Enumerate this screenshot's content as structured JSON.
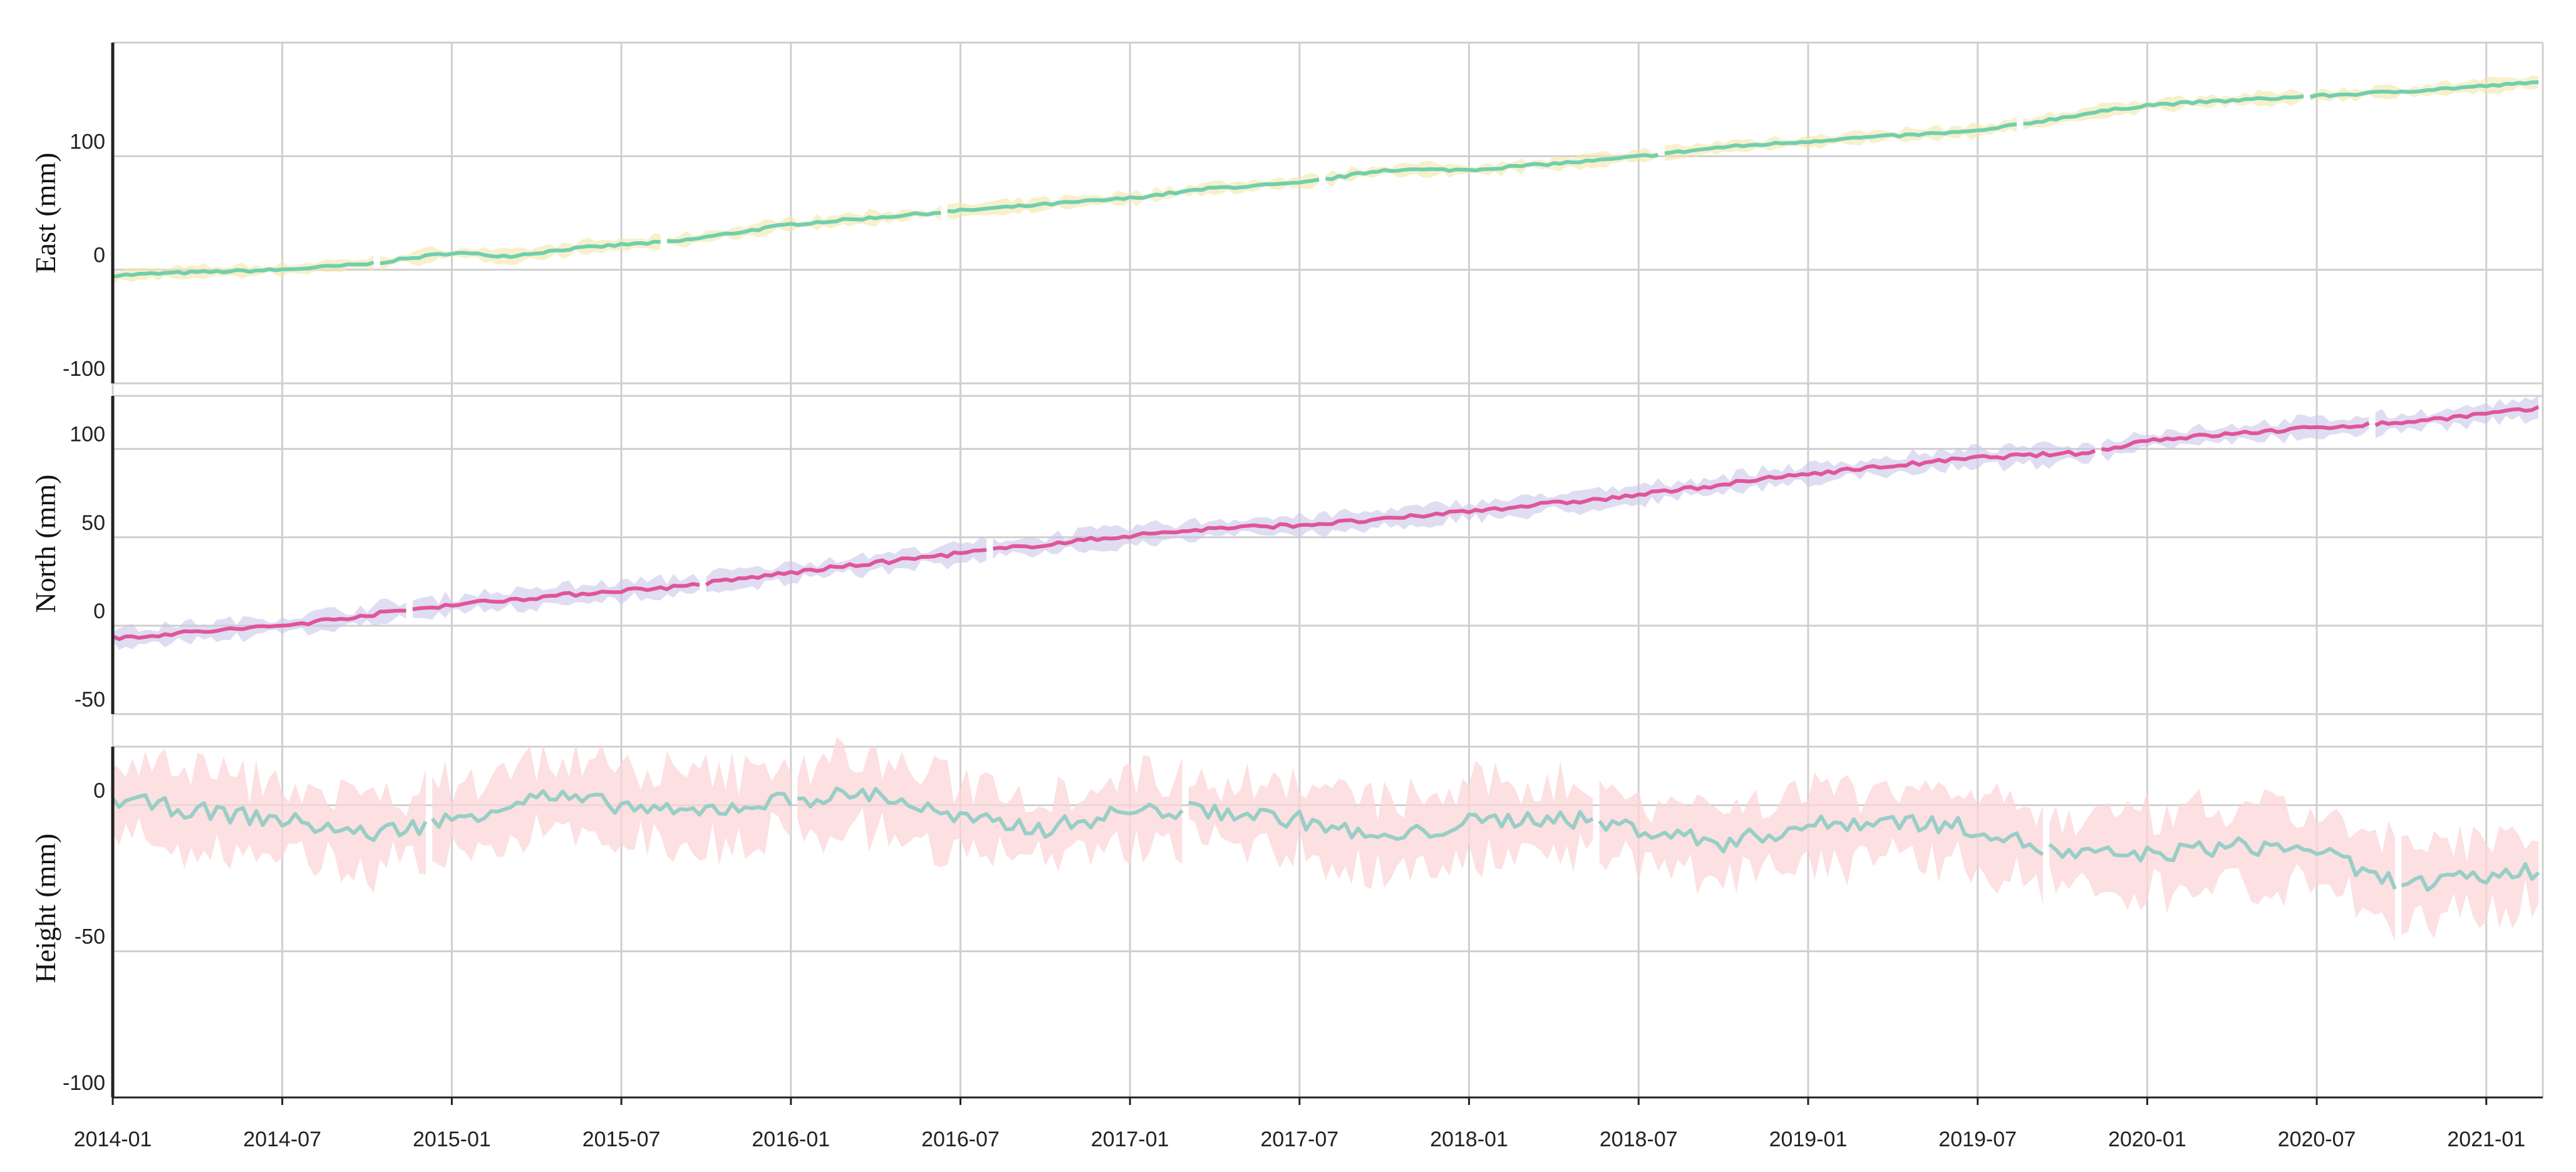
{
  "chart_data": [
    {
      "type": "line",
      "panel": "east",
      "ylabel": "East (mm)",
      "ylim": [
        -100,
        200
      ],
      "yticks": [
        -100,
        0,
        100
      ],
      "grid": true,
      "series": [
        {
          "color": "#6fcfae",
          "band_color": "#f3e6a8",
          "x": [
            "2014-01",
            "2014-03",
            "2014-07",
            "2014-10",
            "2015-01",
            "2015-03",
            "2015-05",
            "2015-07",
            "2015-09",
            "2016-01",
            "2016-07",
            "2017-01",
            "2017-04",
            "2017-07",
            "2017-10",
            "2018-01",
            "2018-06",
            "2018-10",
            "2019-01",
            "2019-02",
            "2019-07",
            "2019-11",
            "2020-01",
            "2020-07",
            "2020-10",
            "2021-03"
          ],
          "values": [
            -5,
            -3,
            0,
            5,
            15,
            12,
            18,
            22,
            25,
            40,
            52,
            63,
            72,
            76,
            88,
            88,
            97,
            108,
            113,
            115,
            122,
            138,
            145,
            153,
            157,
            165
          ]
        }
      ]
    },
    {
      "type": "line",
      "panel": "north",
      "ylabel": "North (mm)",
      "ylim": [
        -50,
        130
      ],
      "yticks": [
        -50,
        0,
        50,
        100
      ],
      "grid": true,
      "series": [
        {
          "color": "#e0559a",
          "band_color": "#c9c6ea",
          "x": [
            "2014-01",
            "2014-07",
            "2015-01",
            "2015-07",
            "2015-09",
            "2016-01",
            "2016-07",
            "2017-01",
            "2017-04",
            "2017-07",
            "2017-10",
            "2018-01",
            "2018-06",
            "2018-10",
            "2019-01",
            "2019-07",
            "2019-11",
            "2020-01",
            "2020-07",
            "2020-10",
            "2021-03"
          ],
          "values": [
            -7,
            0,
            12,
            20,
            22,
            30,
            41,
            51,
            55,
            57,
            60,
            65,
            72,
            80,
            86,
            95,
            98,
            105,
            112,
            115,
            123
          ]
        }
      ]
    },
    {
      "type": "area",
      "panel": "height",
      "ylabel": "Height (mm)",
      "ylim": [
        -100,
        20
      ],
      "yticks": [
        -100,
        -50,
        0
      ],
      "grid": true,
      "series": [
        {
          "color": "#98cec6",
          "band_color": "#fbd5d8",
          "x": [
            "2014-01",
            "2014-04",
            "2014-07",
            "2014-10",
            "2015-01",
            "2015-04",
            "2015-07",
            "2015-09",
            "2016-01",
            "2016-04",
            "2016-07",
            "2016-10",
            "2017-01",
            "2017-04",
            "2017-07",
            "2017-10",
            "2018-01",
            "2018-04",
            "2018-07",
            "2018-10",
            "2019-01",
            "2019-04",
            "2019-07",
            "2019-10",
            "2020-01",
            "2020-04",
            "2020-07",
            "2020-09",
            "2020-11",
            "2021-03"
          ],
          "values": [
            2,
            -2,
            -5,
            -10,
            -5,
            3,
            0,
            -3,
            2,
            4,
            -5,
            -8,
            -2,
            -2,
            -5,
            -12,
            -6,
            -4,
            -8,
            -13,
            -7,
            -5,
            -8,
            -17,
            -17,
            -14,
            -15,
            -25,
            -27,
            -22
          ]
        }
      ]
    }
  ],
  "x_axis": {
    "tick_labels": [
      "2014-01",
      "2014-07",
      "2015-01",
      "2015-07",
      "2016-01",
      "2016-07",
      "2017-01",
      "2017-07",
      "2018-01",
      "2018-07",
      "2019-01",
      "2019-07",
      "2020-01",
      "2020-07",
      "2021-01"
    ]
  }
}
